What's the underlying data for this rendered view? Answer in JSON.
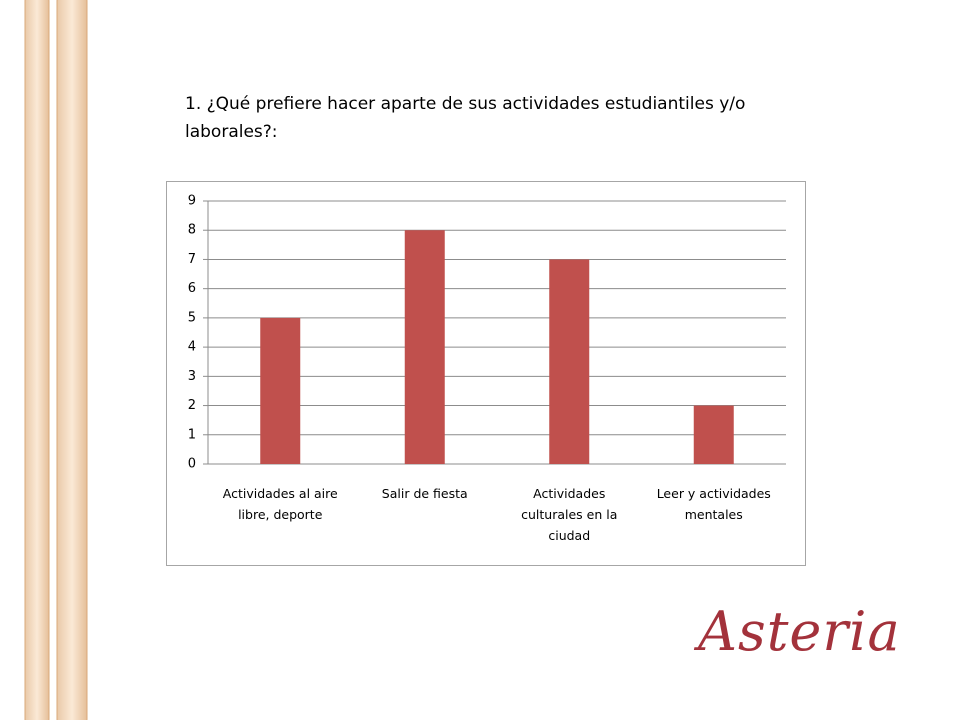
{
  "chart_data": {
    "type": "bar",
    "title": "1. ¿Qué prefiere hacer aparte de sus actividades estudiantiles y/o laborales?:",
    "categories": [
      "Actividades al aire libre, deporte",
      "Salir de fiesta",
      "Actividades culturales en la ciudad",
      "Leer y actividades mentales"
    ],
    "values": [
      5,
      8,
      7,
      2
    ],
    "color": "#c0504d",
    "ylim": [
      0,
      9
    ],
    "yticks": [
      0,
      1,
      2,
      3,
      4,
      5,
      6,
      7,
      8,
      9
    ],
    "grid": true
  },
  "logo": "Asteria"
}
